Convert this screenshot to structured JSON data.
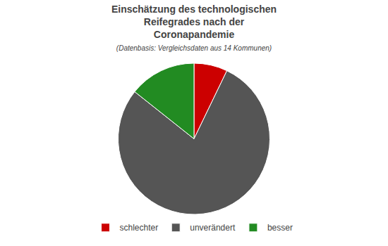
{
  "chart_data": {
    "type": "pie",
    "title": "Einschätzung des technologischen\nReifegrades nach der\nCoronapandemie",
    "subtitle": "(Datenbasis: Vergleichsdaten aus 14 Kommunen)",
    "categories": [
      "schlechter",
      "unverändert",
      "besser"
    ],
    "values": [
      7.14,
      78.57,
      14.29
    ],
    "colors": [
      "#cc0000",
      "#555555",
      "#228b22"
    ],
    "legend": "bottom",
    "data_labels": false
  }
}
